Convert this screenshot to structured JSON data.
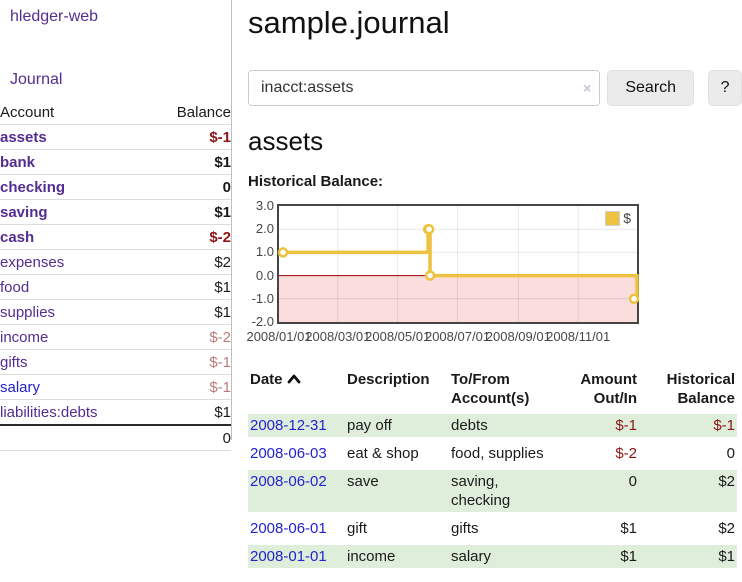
{
  "app": {
    "brand": "hledger-web",
    "nav": {
      "journal": "Journal"
    }
  },
  "colors": {
    "link_purple": "#542d91",
    "link_blue": "#2323cc",
    "negative_strong": "#8c1616",
    "negative_soft": "#b97c7c",
    "row_green": "#dfeedb",
    "chart_series_gold": "#edc240",
    "chart_negative_fill": "#fbdddd",
    "chart_zero_line": "#9a0000"
  },
  "sidebar": {
    "accounts": {
      "headers": [
        "Account",
        "Balance"
      ],
      "rows": [
        {
          "account": "assets",
          "balance": "$-1",
          "level": 1,
          "in_query": true,
          "balance_style": "neg-strong"
        },
        {
          "account": "bank",
          "balance": "$1",
          "level": 2,
          "in_query": true,
          "balance_style": ""
        },
        {
          "account": "checking",
          "balance": "0",
          "level": 3,
          "in_query": true,
          "balance_style": ""
        },
        {
          "account": "saving",
          "balance": "$1",
          "level": 3,
          "in_query": true,
          "balance_style": ""
        },
        {
          "account": "cash",
          "balance": "$-2",
          "level": 2,
          "in_query": true,
          "balance_style": "neg-strong"
        },
        {
          "account": "expenses",
          "balance": "$2",
          "level": 1,
          "in_query": false,
          "balance_style": ""
        },
        {
          "account": "food",
          "balance": "$1",
          "level": 2,
          "in_query": false,
          "balance_style": ""
        },
        {
          "account": "supplies",
          "balance": "$1",
          "level": 2,
          "in_query": false,
          "balance_style": ""
        },
        {
          "account": "income",
          "balance": "$-2",
          "level": 1,
          "in_query": false,
          "balance_style": "neg-soft"
        },
        {
          "account": "gifts",
          "balance": "$-1",
          "level": 2,
          "in_query": false,
          "balance_style": "neg-soft"
        },
        {
          "account": "salary",
          "balance": "$-1",
          "level": 2,
          "in_query": false,
          "balance_style": "neg-soft",
          "link_blue": true
        },
        {
          "account": "liabilities:debts",
          "balance": "$1",
          "level": 1,
          "in_query": false,
          "balance_style": ""
        }
      ],
      "total": "0"
    }
  },
  "main": {
    "title": "sample.journal",
    "search": {
      "value": "inacct:assets",
      "clear_icon": "×",
      "search_button": "Search",
      "help_button": "?"
    },
    "account_heading": "assets",
    "chart_label": "Historical Balance:",
    "register": {
      "headers": [
        {
          "lines": [
            "Date"
          ],
          "align": "left",
          "sort_icon": "chevron-up"
        },
        {
          "lines": [
            "Description"
          ],
          "align": "left"
        },
        {
          "lines": [
            "To/From",
            "Account(s)"
          ],
          "align": "left"
        },
        {
          "lines": [
            "Amount",
            "Out/In"
          ],
          "align": "right"
        },
        {
          "lines": [
            "Historical",
            "Balance"
          ],
          "align": "right"
        }
      ],
      "rows": [
        {
          "date": "2008-12-31",
          "description": "pay off",
          "accounts": "debts",
          "amount": "$-1",
          "amount_negative": true,
          "balance": "$-1",
          "balance_negative": true
        },
        {
          "date": "2008-06-03",
          "description": "eat & shop",
          "accounts": "food, supplies",
          "amount": "$-2",
          "amount_negative": true,
          "balance": "0",
          "balance_negative": false
        },
        {
          "date": "2008-06-02",
          "description": "save",
          "accounts": "saving, checking",
          "amount": "0",
          "amount_negative": false,
          "balance": "$2",
          "balance_negative": false
        },
        {
          "date": "2008-06-01",
          "description": "gift",
          "accounts": "gifts",
          "amount": "$1",
          "amount_negative": false,
          "balance": "$2",
          "balance_negative": false
        },
        {
          "date": "2008-01-01",
          "description": "income",
          "accounts": "salary",
          "amount": "$1",
          "amount_negative": false,
          "balance": "$1",
          "balance_negative": false
        }
      ]
    }
  },
  "chart_data": {
    "type": "line",
    "step": true,
    "title": "Historical Balance",
    "series": [
      {
        "name": "$",
        "color": "#edc240",
        "points": [
          {
            "x": "2008-01-01",
            "y": 1
          },
          {
            "x": "2008-06-01",
            "y": 2
          },
          {
            "x": "2008-06-02",
            "y": 2
          },
          {
            "x": "2008-06-03",
            "y": 0
          },
          {
            "x": "2008-12-31",
            "y": -1
          }
        ]
      }
    ],
    "x_range": [
      "2008-01-01",
      "2008-12-31"
    ],
    "ylim": [
      -2,
      3
    ],
    "yticks": [
      "3.0",
      "2.0",
      "1.0",
      "0.0",
      "-1.0",
      "-2.0"
    ],
    "xticks": [
      "2008/01/01",
      "2008/03/01",
      "2008/05/01",
      "2008/07/01",
      "2008/09/01",
      "2008/11/01"
    ],
    "grid": true,
    "legend_position": "top-right",
    "legend_label": "$",
    "negative_fill": "#fbdddd",
    "zero_line": "#9a0000"
  }
}
